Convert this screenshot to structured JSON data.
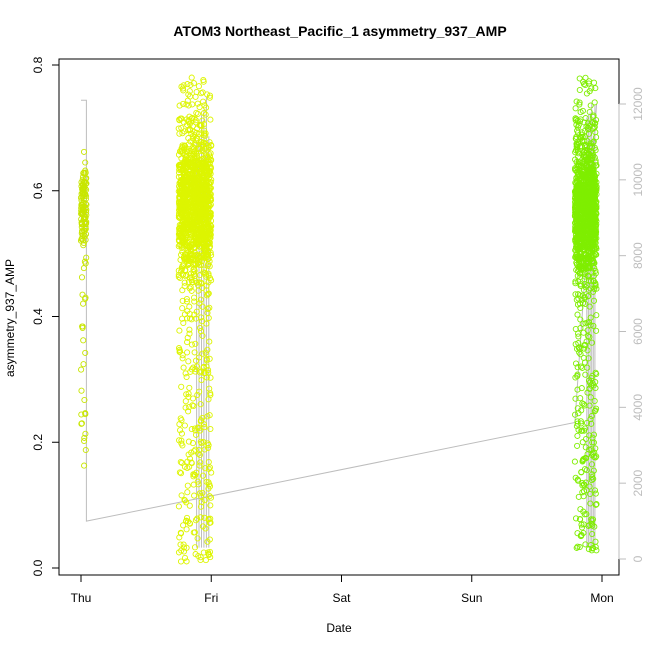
{
  "chart_data": {
    "type": "scatter",
    "title": "ATOM3 Northeast_Pacific_1 asymmetry_937_AMP",
    "xlabel": "Date",
    "ylabel": "asymmetry_937_AMP",
    "x_ticks": [
      "Thu",
      "Fri",
      "Sat",
      "Sun",
      "Mon"
    ],
    "xlim": [
      "Thu 00:00",
      "Mon 00:00"
    ],
    "ylim": [
      0.0,
      0.8
    ],
    "y_ticks": [
      "0.0",
      "0.2",
      "0.4",
      "0.6",
      "0.8"
    ],
    "y2_ticks": [
      "0",
      "2000",
      "4000",
      "6000",
      "8000",
      "10000",
      "12000"
    ],
    "y2lim": [
      0,
      12000
    ],
    "grid": false,
    "point_style": "open-circle",
    "colors": {
      "thu_cluster": "#c8e600",
      "fri_cluster": "#ddf500",
      "mon_cluster": "#7fee00",
      "secondary_line": "#bdbdbd",
      "axis": "#000000",
      "right_axis": "#bdbdbd"
    },
    "clusters": [
      {
        "name": "Thu",
        "x_range": [
          "Thu 00:00",
          "Thu 01:00"
        ],
        "y_center": 0.58,
        "y_spread": 0.06,
        "y_min": 0.155,
        "y_max": 0.665,
        "n": 140
      },
      {
        "name": "Fri",
        "x_range": [
          "Thu 18:00",
          "Fri 00:00"
        ],
        "y_center": 0.58,
        "y_spread": 0.09,
        "y_min": 0.01,
        "y_max": 0.78,
        "n": 1500
      },
      {
        "name": "Mon",
        "x_range": [
          "Sun 19:00",
          "Sun 23:00"
        ],
        "y_center": 0.57,
        "y_spread": 0.09,
        "y_min": 0.025,
        "y_max": 0.78,
        "n": 1300
      }
    ],
    "secondary_line": {
      "axis": "right",
      "points": [
        [
          "Thu 00:00",
          12100
        ],
        [
          "Thu 01:00",
          12100
        ],
        [
          "Thu 01:00",
          1000
        ],
        [
          "Sun 19:00",
          3600
        ],
        [
          "Sun 23:00",
          12000
        ]
      ]
    }
  }
}
